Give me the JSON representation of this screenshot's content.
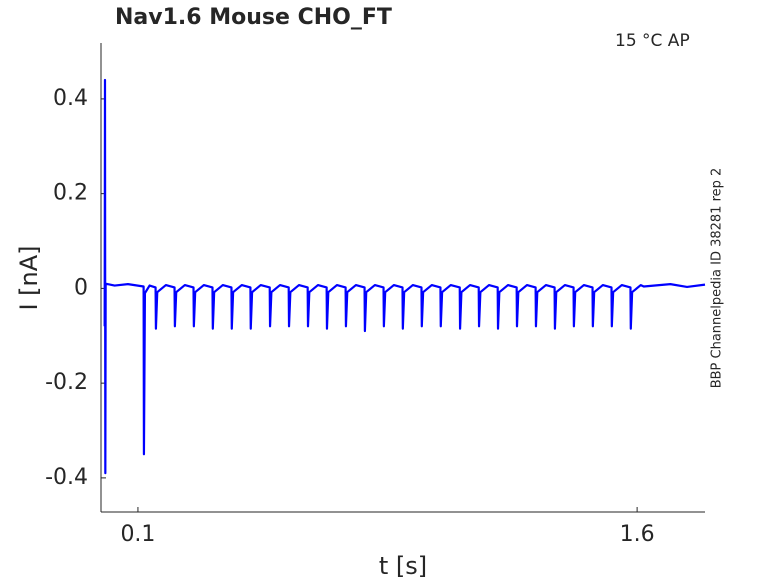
{
  "chart_data": {
    "type": "line",
    "title": "Nav1.6  Mouse  CHO_FT",
    "annotation": "15 °C  AP",
    "side_label": "BBP Channelpedia ID 38281 rep 2",
    "x_label": "t [s]",
    "y_label": "I [nA]",
    "xlim": [
      -0.011,
      1.804
    ],
    "ylim": [
      -0.472,
      0.518
    ],
    "xticks": [
      0.1,
      1.6
    ],
    "yticks": [
      0.4,
      0.2,
      0,
      -0.2,
      -0.4
    ],
    "grid": false,
    "color": "#0000ff",
    "x": [
      0.0,
      0.001,
      0.002,
      0.003,
      0.03,
      0.07,
      0.117,
      0.118,
      0.121,
      0.135,
      0.153,
      0.154,
      0.158,
      0.184,
      0.21,
      0.211,
      0.215,
      0.241,
      0.267,
      0.268,
      0.272,
      0.298,
      0.324,
      0.325,
      0.329,
      0.355,
      0.381,
      0.382,
      0.386,
      0.412,
      0.438,
      0.439,
      0.443,
      0.469,
      0.496,
      0.497,
      0.501,
      0.527,
      0.553,
      0.554,
      0.558,
      0.584,
      0.61,
      0.611,
      0.615,
      0.641,
      0.667,
      0.668,
      0.672,
      0.698,
      0.724,
      0.725,
      0.729,
      0.755,
      0.781,
      0.782,
      0.786,
      0.812,
      0.838,
      0.839,
      0.843,
      0.869,
      0.895,
      0.896,
      0.9,
      0.926,
      0.952,
      0.953,
      0.957,
      0.983,
      1.009,
      1.01,
      1.014,
      1.04,
      1.067,
      1.068,
      1.072,
      1.098,
      1.124,
      1.125,
      1.129,
      1.155,
      1.181,
      1.182,
      1.186,
      1.212,
      1.238,
      1.239,
      1.243,
      1.269,
      1.295,
      1.296,
      1.3,
      1.326,
      1.352,
      1.353,
      1.357,
      1.383,
      1.409,
      1.41,
      1.414,
      1.44,
      1.466,
      1.467,
      1.471,
      1.497,
      1.523,
      1.524,
      1.528,
      1.554,
      1.58,
      1.581,
      1.585,
      1.611,
      1.62,
      1.7,
      1.75,
      1.804
    ],
    "values": [
      -0.08,
      0.44,
      -0.39,
      0.01,
      0.006,
      0.009,
      0.004,
      -0.35,
      -0.01,
      0.006,
      0.002,
      -0.085,
      -0.008,
      0.007,
      0.002,
      -0.08,
      -0.008,
      0.007,
      0.002,
      -0.08,
      -0.008,
      0.007,
      0.002,
      -0.085,
      -0.008,
      0.007,
      0.002,
      -0.085,
      -0.008,
      0.007,
      0.002,
      -0.085,
      -0.008,
      0.007,
      0.002,
      -0.08,
      -0.008,
      0.007,
      0.002,
      -0.08,
      -0.008,
      0.007,
      0.002,
      -0.08,
      -0.008,
      0.007,
      0.002,
      -0.085,
      -0.008,
      0.007,
      0.002,
      -0.08,
      -0.008,
      0.007,
      0.002,
      -0.09,
      -0.008,
      0.007,
      0.002,
      -0.08,
      -0.008,
      0.007,
      0.002,
      -0.085,
      -0.008,
      0.007,
      0.002,
      -0.08,
      -0.008,
      0.007,
      0.002,
      -0.08,
      -0.008,
      0.007,
      0.002,
      -0.085,
      -0.008,
      0.007,
      0.002,
      -0.08,
      -0.008,
      0.007,
      0.002,
      -0.085,
      -0.008,
      0.007,
      0.002,
      -0.08,
      -0.008,
      0.007,
      0.002,
      -0.08,
      -0.008,
      0.007,
      0.002,
      -0.085,
      -0.008,
      0.007,
      0.002,
      -0.08,
      -0.008,
      0.007,
      0.002,
      -0.08,
      -0.008,
      0.007,
      0.002,
      -0.08,
      -0.008,
      0.007,
      0.002,
      -0.085,
      -0.008,
      0.007,
      0.004,
      0.009,
      0.003,
      0.008
    ]
  }
}
